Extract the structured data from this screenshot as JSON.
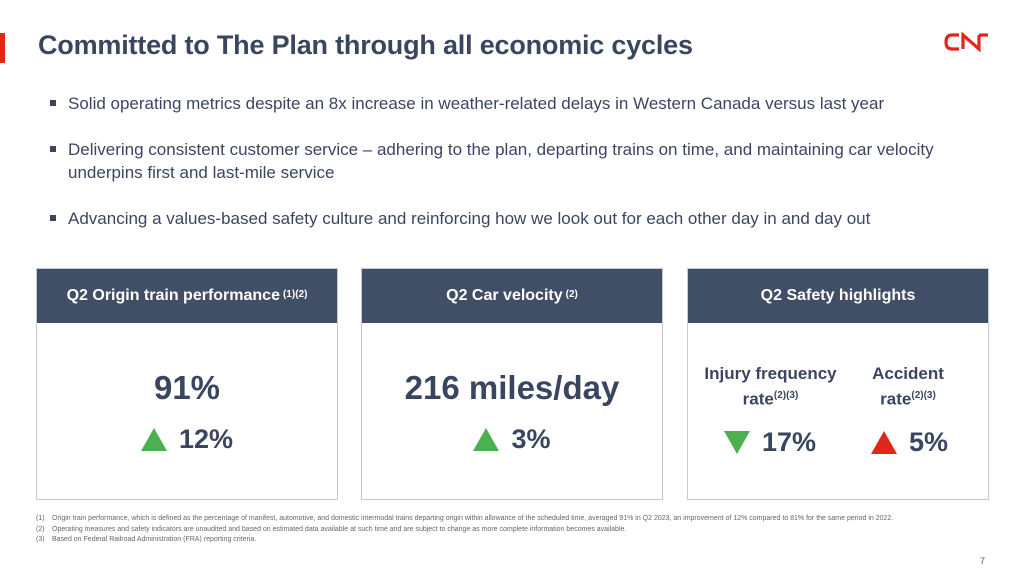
{
  "slide": {
    "title": "Committed to The Plan through all economic cycles",
    "logo_text": "CN",
    "page_number": "7",
    "accent_color": "#e1261c",
    "header_color": "#414f66"
  },
  "bullets": [
    "Solid operating metrics despite an 8x increase in weather-related delays in Western Canada versus last year",
    "Delivering consistent customer service – adhering to the plan, departing trains on time, and maintaining car velocity underpins first and last-mile service",
    "Advancing a values-based safety culture and reinforcing how we look out for each other day in and day out"
  ],
  "cards": {
    "origin": {
      "title": "Q2 Origin train performance",
      "title_sup": "(1)(2)",
      "value": "91%",
      "change": "12%",
      "direction": "up"
    },
    "velocity": {
      "title": "Q2 Car velocity",
      "title_sup": "(2)",
      "value": "216 miles/day",
      "change": "3%",
      "direction": "up"
    },
    "safety": {
      "title": "Q2 Safety highlights",
      "injury_label_line1": "Injury frequency",
      "injury_label_line2": "rate",
      "injury_sup": "(2)(3)",
      "injury_change": "17%",
      "injury_direction": "down",
      "accident_label_line1": "Accident",
      "accident_label_line2": "rate",
      "accident_sup": "(2)(3)",
      "accident_change": "5%",
      "accident_direction": "up"
    }
  },
  "footnotes": [
    {
      "num": "(1)",
      "text": "Origin train performance, which is defined as the percentage of manifest, automotive, and domestic intermodal trains departing origin within allowance of the scheduled time, averaged 91% in Q2 2023, an improvement of 12% compared to 81% for the same period in 2022."
    },
    {
      "num": "(2)",
      "text": "Operating measures and safety indicators are unaudited and based on estimated data available at such time and are subject to change as more complete information becomes available."
    },
    {
      "num": "(3)",
      "text": "Based on Federal Railroad Administration (FRA) reporting criteria."
    }
  ]
}
